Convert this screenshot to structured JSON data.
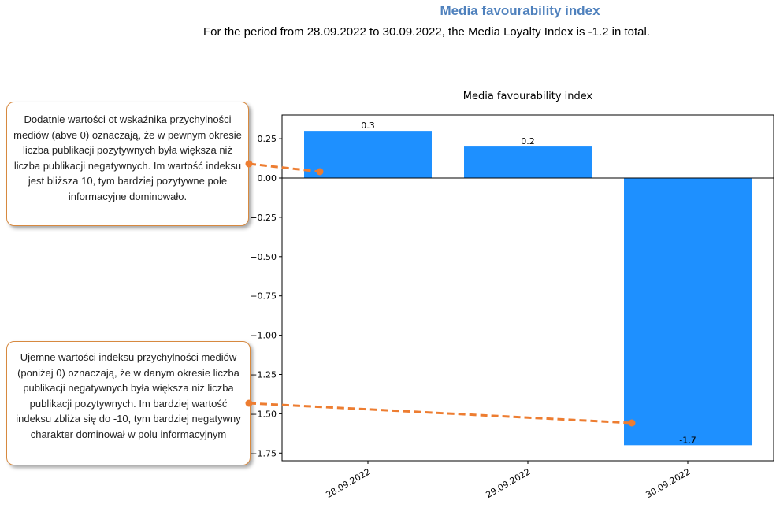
{
  "header": {
    "title": "Media favourability index",
    "subtitle": "For the period from 28.09.2022 to 30.09.2022, the Media Loyalty Index is -1.2 in total."
  },
  "callouts": {
    "positive": "Dodatnie wartości ot wskaźnika przychylności mediów (abve 0) oznaczają, że w pewnym okresie liczba publikacji pozytywnych była większa niż liczba publikacji negatywnych. Im wartość indeksu jest bliższa 10, tym bardziej pozytywne pole informacyjne dominowało.",
    "negative": "Ujemne wartości indeksu przychylności mediów (poniżej 0) oznaczają, że w danym okresie liczba publikacji negatywnych była większa niż liczba publikacji pozytywnych. Im bardziej wartość indeksu zbliża się do -10, tym bardziej negatywny charakter dominował w polu informacyjnym"
  },
  "chart_data": {
    "type": "bar",
    "title": "Media favourability index",
    "categories": [
      "28.09.2022",
      "29.09.2022",
      "30.09.2022"
    ],
    "values": [
      0.3,
      0.2,
      -1.7
    ],
    "data_labels": [
      "0.3",
      "0.2",
      "-1.7"
    ],
    "ylim": [
      -1.8,
      0.4
    ],
    "yticks": [
      0.25,
      0.0,
      -0.25,
      -0.5,
      -0.75,
      -1.0,
      -1.25,
      -1.5,
      -1.75
    ],
    "ytick_labels": [
      "0.25",
      "0.00",
      "−0.25",
      "−0.50",
      "−0.75",
      "−1.00",
      "−1.25",
      "−1.50",
      "−1.75"
    ],
    "bar_color": "#1e90ff",
    "grid": false,
    "zero_line": true
  },
  "colors": {
    "accent": "#4f81bd",
    "callout_border": "#d7893f",
    "connector": "#ed7d31"
  }
}
